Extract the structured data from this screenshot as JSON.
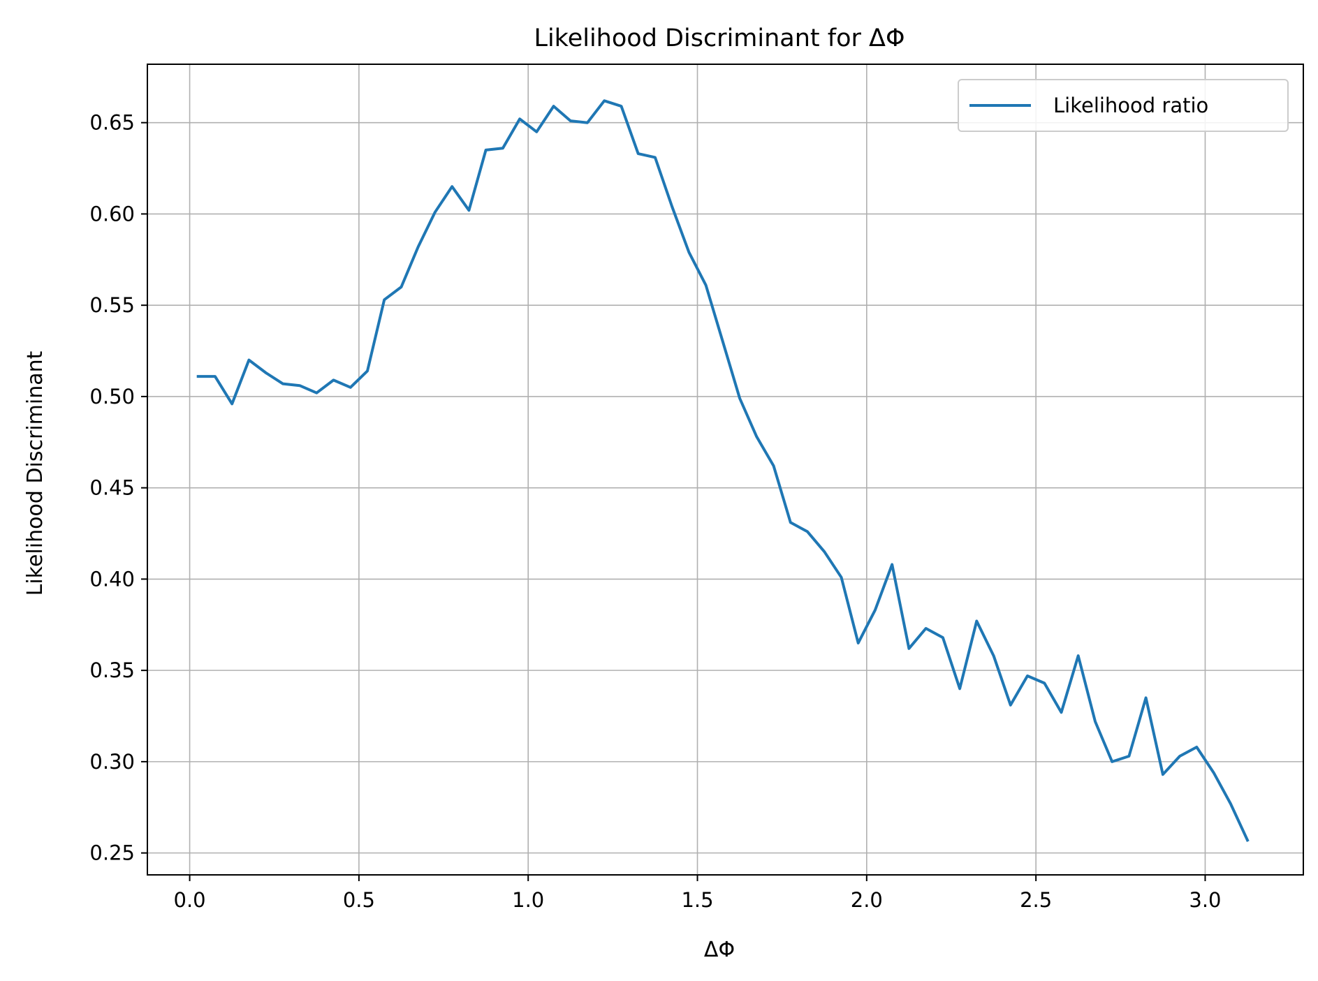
{
  "chart_data": {
    "type": "line",
    "title": "Likelihood Discriminant for ΔΦ",
    "xlabel": "ΔΦ",
    "ylabel": "Likelihood Discriminant",
    "xlim": [
      -0.125,
      3.29
    ],
    "ylim": [
      0.238,
      0.682
    ],
    "xticks": [
      0.0,
      0.5,
      1.0,
      1.5,
      2.0,
      2.5,
      3.0
    ],
    "xtick_labels": [
      "0.0",
      "0.5",
      "1.0",
      "1.5",
      "2.0",
      "2.5",
      "3.0"
    ],
    "yticks": [
      0.25,
      0.3,
      0.35,
      0.4,
      0.45,
      0.5,
      0.55,
      0.6,
      0.65
    ],
    "ytick_labels": [
      "0.25",
      "0.30",
      "0.35",
      "0.40",
      "0.45",
      "0.50",
      "0.55",
      "0.60",
      "0.65"
    ],
    "grid": true,
    "legend_position": "top-right",
    "series": [
      {
        "name": "Likelihood ratio",
        "color": "#1f77b4",
        "x": [
          0.025,
          0.075,
          0.125,
          0.175,
          0.225,
          0.275,
          0.325,
          0.375,
          0.425,
          0.475,
          0.525,
          0.575,
          0.625,
          0.675,
          0.725,
          0.775,
          0.825,
          0.875,
          0.925,
          0.975,
          1.025,
          1.075,
          1.125,
          1.175,
          1.225,
          1.275,
          1.325,
          1.375,
          1.425,
          1.475,
          1.525,
          1.575,
          1.625,
          1.675,
          1.725,
          1.775,
          1.825,
          1.875,
          1.925,
          1.975,
          2.025,
          2.075,
          2.125,
          2.175,
          2.225,
          2.275,
          2.325,
          2.375,
          2.425,
          2.475,
          2.525,
          2.575,
          2.625,
          2.675,
          2.725,
          2.775,
          2.825,
          2.875,
          2.925,
          2.975,
          3.025,
          3.075,
          3.125
        ],
        "y": [
          0.511,
          0.511,
          0.496,
          0.52,
          0.513,
          0.507,
          0.506,
          0.502,
          0.509,
          0.505,
          0.514,
          0.553,
          0.56,
          0.582,
          0.601,
          0.615,
          0.602,
          0.635,
          0.636,
          0.652,
          0.645,
          0.659,
          0.651,
          0.65,
          0.662,
          0.659,
          0.633,
          0.631,
          0.604,
          0.579,
          0.561,
          0.53,
          0.499,
          0.478,
          0.462,
          0.431,
          0.426,
          0.415,
          0.401,
          0.365,
          0.383,
          0.408,
          0.362,
          0.373,
          0.368,
          0.34,
          0.377,
          0.358,
          0.331,
          0.347,
          0.343,
          0.327,
          0.358,
          0.322,
          0.3,
          0.303,
          0.335,
          0.293,
          0.303,
          0.308,
          0.294,
          0.277,
          0.257
        ]
      }
    ]
  }
}
